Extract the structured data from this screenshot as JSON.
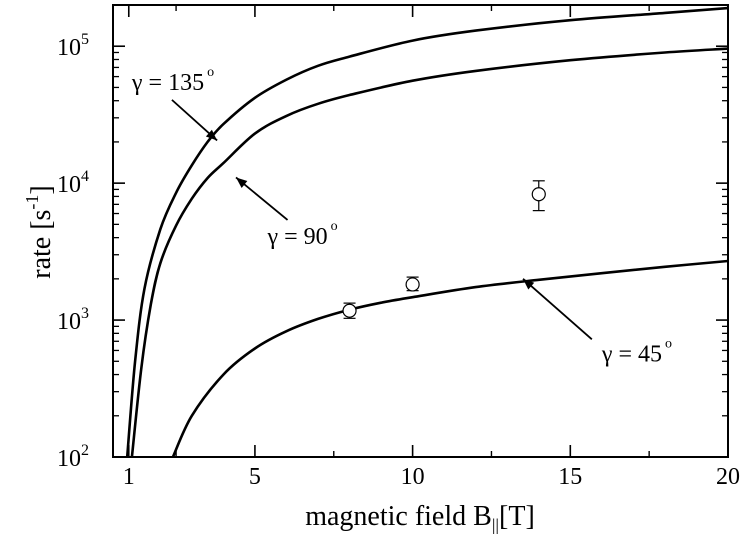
{
  "chart_data": {
    "type": "line",
    "xlabel": "magnetic field B",
    "xlabel_sub": "||",
    "xlabel_unit": "[T]",
    "ylabel": "rate [s",
    "ylabel_sup": "-1",
    "ylabel_end": "]",
    "xlim": [
      0.5,
      20
    ],
    "ylim": [
      100,
      200000
    ],
    "yscale": "log",
    "grid": false,
    "x_ticks": [
      1,
      5,
      10,
      15,
      20
    ],
    "x_tick_labels": [
      "1",
      "5",
      "10",
      "15",
      "20"
    ],
    "x_minor_ticks": [
      2.5,
      7.5,
      12.5,
      17.5
    ],
    "y_ticks": [
      {
        "value": 100,
        "base": "10",
        "exp": "2"
      },
      {
        "value": 1000,
        "base": "10",
        "exp": "3"
      },
      {
        "value": 10000,
        "base": "10",
        "exp": "4"
      },
      {
        "value": 100000,
        "base": "10",
        "exp": "5"
      }
    ],
    "series": [
      {
        "name": "γ = 135°",
        "kind": "line",
        "x": [
          0.95,
          1.2,
          1.5,
          2.0,
          2.5,
          3.0,
          3.5,
          4.0,
          5.0,
          6.0,
          7.0,
          8.0,
          10.0,
          12.0,
          15.0,
          18.0,
          20.0
        ],
        "y": [
          100,
          500,
          1700,
          4600,
          8500,
          13500,
          20000,
          27000,
          42000,
          57000,
          72000,
          84000,
          110000,
          130000,
          155000,
          175000,
          190000
        ]
      },
      {
        "name": "γ = 90°",
        "kind": "line",
        "x": [
          1.1,
          1.4,
          1.7,
          2.0,
          2.5,
          3.0,
          3.5,
          4.0,
          5.0,
          6.0,
          7.0,
          8.0,
          10.0,
          12.0,
          15.0,
          18.0,
          20.0
        ],
        "y": [
          100,
          450,
          1300,
          2600,
          4900,
          7700,
          10900,
          14000,
          23000,
          31000,
          38000,
          44000,
          56000,
          66000,
          79000,
          90000,
          96000
        ]
      },
      {
        "name": "γ = 45°",
        "kind": "line",
        "x": [
          2.4,
          3.0,
          4.0,
          5.0,
          6.0,
          7.0,
          8.0,
          9.0,
          10.0,
          12.0,
          14.0,
          16.0,
          18.0,
          20.0
        ],
        "y": [
          100,
          200,
          400,
          620,
          830,
          1020,
          1190,
          1340,
          1470,
          1740,
          1970,
          2200,
          2450,
          2700
        ]
      },
      {
        "name": "data",
        "kind": "points",
        "x": [
          8,
          10,
          14
        ],
        "y": [
          1170,
          1820,
          8300
        ],
        "y_low": [
          1030,
          1640,
          6300
        ],
        "y_high": [
          1330,
          2060,
          10400
        ]
      }
    ],
    "annotations": [
      {
        "label": "γ = 135",
        "deg": "o",
        "at": [
          3.8,
          20500
        ],
        "text_at": [
          1.1,
          48000
        ]
      },
      {
        "label": "γ = 90",
        "deg": "o",
        "at": [
          4.4,
          11000
        ],
        "text_at": [
          5.4,
          3600
        ]
      },
      {
        "label": "γ = 45",
        "deg": "o",
        "at": [
          13.5,
          2000
        ],
        "text_at": [
          16.0,
          500
        ]
      }
    ]
  }
}
